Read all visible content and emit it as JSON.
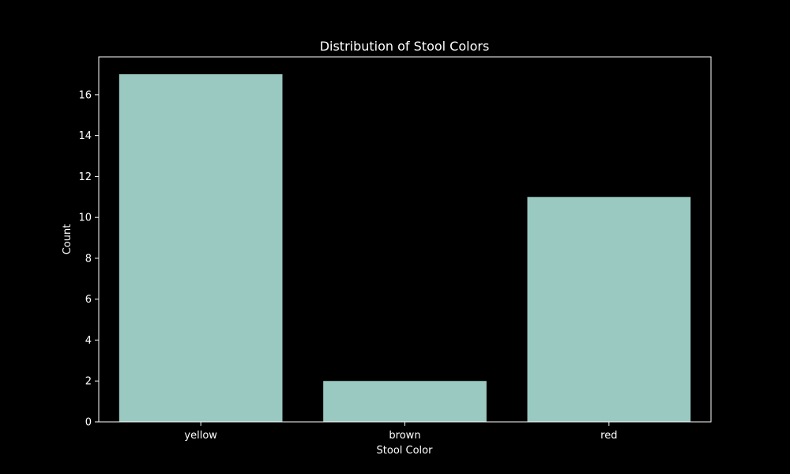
{
  "chart_data": {
    "type": "bar",
    "title": "Distribution of Stool Colors",
    "xlabel": "Stool Color",
    "ylabel": "Count",
    "categories": [
      "yellow",
      "brown",
      "red"
    ],
    "values": [
      17,
      2,
      11
    ],
    "ylim": [
      0,
      17.85
    ],
    "yticks": [
      0,
      2,
      4,
      6,
      8,
      10,
      12,
      14,
      16
    ],
    "grid": false,
    "legend": "none",
    "colors": {
      "background": "#000000",
      "bar": "#99c9c1",
      "axis": "#ffffff",
      "text": "#ffffff"
    }
  }
}
